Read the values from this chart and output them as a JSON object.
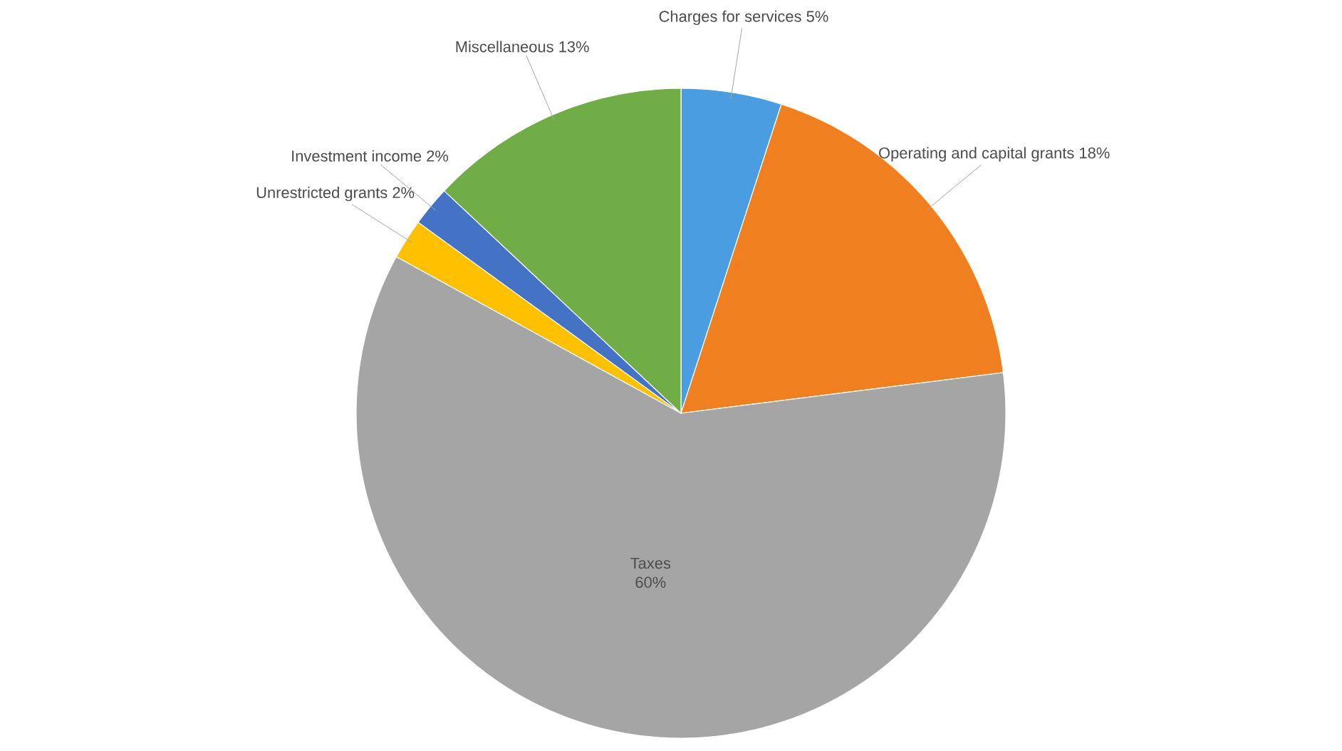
{
  "chart_data": {
    "type": "pie",
    "categories": [
      "Charges for services",
      "Operating and capital grants",
      "Taxes",
      "Unrestricted grants",
      "Investment income",
      "Miscellaneous"
    ],
    "values": [
      5,
      18,
      60,
      2,
      2,
      13
    ],
    "value_labels": [
      "5%",
      "18%",
      "60%",
      "2%",
      "2%",
      "13%"
    ],
    "colors": [
      "#4a9de0",
      "#f07f20",
      "#a5a5a5",
      "#ffc000",
      "#4472c4",
      "#70ad47"
    ]
  }
}
